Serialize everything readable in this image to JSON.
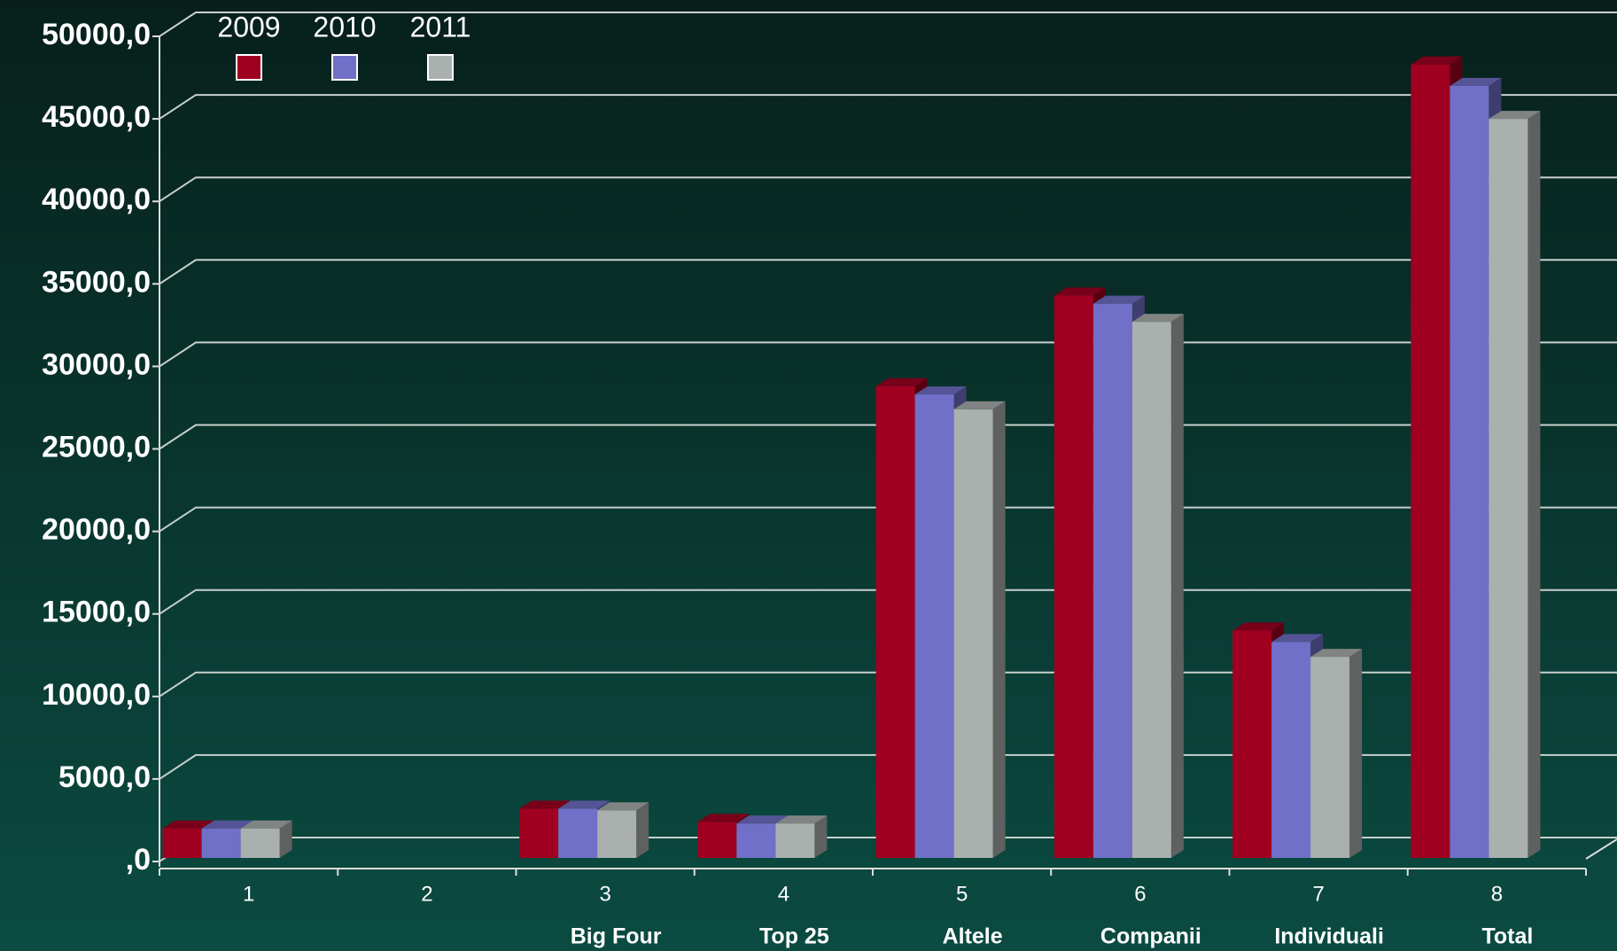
{
  "chart_data": {
    "type": "bar3d",
    "categories": [
      "1",
      "2",
      "3",
      "4",
      "5",
      "6",
      "7",
      "8"
    ],
    "sublabels": [
      null,
      null,
      "Big Four",
      "Top 25",
      "Altele",
      "Companii",
      "Individuali",
      "Total"
    ],
    "series": [
      {
        "name": "2009",
        "color": "#a00020",
        "values": [
          2000,
          null,
          3200,
          2400,
          28800,
          34300,
          14000,
          48300
        ]
      },
      {
        "name": "2010",
        "color": "#7070c8",
        "values": [
          2000,
          null,
          3200,
          2300,
          28300,
          33800,
          13300,
          47000
        ]
      },
      {
        "name": "2011",
        "color": "#aab0ae",
        "values": [
          2000,
          null,
          3100,
          2300,
          27400,
          32700,
          12400,
          45000
        ]
      }
    ],
    "ylim": [
      0,
      50000
    ],
    "yticks": [
      {
        "value": 0,
        "label": ",0"
      },
      {
        "value": 5000,
        "label": "5000,0"
      },
      {
        "value": 10000,
        "label": "10000,0"
      },
      {
        "value": 15000,
        "label": "15000,0"
      },
      {
        "value": 20000,
        "label": "20000,0"
      },
      {
        "value": 25000,
        "label": "25000,0"
      },
      {
        "value": 30000,
        "label": "30000,0"
      },
      {
        "value": 35000,
        "label": "35000,0"
      },
      {
        "value": 40000,
        "label": "40000,0"
      },
      {
        "value": 45000,
        "label": "45000,0"
      },
      {
        "value": 50000,
        "label": "50000,0"
      }
    ],
    "grid": true,
    "legend": "top-left"
  }
}
